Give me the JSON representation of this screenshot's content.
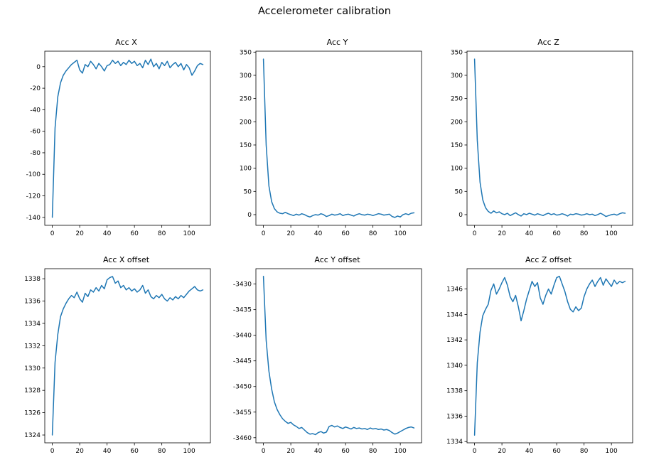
{
  "title": "Accelerometer calibration",
  "line_color": "#1f77b4",
  "text_color": "#000000",
  "chart_data": [
    {
      "type": "line",
      "title": "Acc X",
      "xlabel": "",
      "ylabel": "",
      "x_ticks": [
        0,
        20,
        40,
        60,
        80,
        100
      ],
      "y_ticks": [
        -140,
        -120,
        -100,
        -80,
        -60,
        -40,
        -20,
        0
      ],
      "xlim": [
        -5.5,
        115.5
      ],
      "ylim": [
        -147.4,
        14.4
      ],
      "grid": false,
      "legend": "none",
      "x": {
        "start": 0,
        "step": 2,
        "count": 56
      },
      "values": [
        -140,
        -57,
        -28,
        -15,
        -8,
        -4,
        -1,
        2,
        4,
        6,
        -3,
        -6,
        2,
        0,
        5,
        2,
        -2,
        3,
        0,
        -4,
        1,
        2,
        6,
        3,
        5,
        1,
        4,
        2,
        6,
        3,
        5,
        1,
        3,
        -1,
        6,
        2,
        7,
        0,
        3,
        -2,
        4,
        1,
        5,
        -1,
        2,
        4,
        0,
        3,
        -3,
        2,
        -1,
        -8,
        -4,
        1,
        3,
        2
      ]
    },
    {
      "type": "line",
      "title": "Acc Y",
      "xlabel": "",
      "ylabel": "",
      "x_ticks": [
        0,
        20,
        40,
        60,
        80,
        100
      ],
      "y_ticks": [
        0,
        50,
        100,
        150,
        200,
        250,
        300,
        350
      ],
      "xlim": [
        -5.5,
        115.5
      ],
      "ylim": [
        -23,
        352
      ],
      "grid": false,
      "legend": "none",
      "x": {
        "start": 0,
        "step": 2,
        "count": 56
      },
      "values": [
        335,
        150,
        62,
        28,
        13,
        6,
        3,
        2,
        5,
        2,
        0,
        -2,
        1,
        -1,
        2,
        0,
        -3,
        -5,
        -2,
        0,
        -1,
        2,
        0,
        -4,
        -2,
        1,
        -1,
        0,
        2,
        -2,
        0,
        1,
        -1,
        -3,
        0,
        2,
        0,
        -1,
        1,
        0,
        -2,
        0,
        2,
        1,
        -1,
        0,
        1,
        -4,
        -6,
        -3,
        -5,
        0,
        2,
        0,
        3,
        4
      ]
    },
    {
      "type": "line",
      "title": "Acc Z",
      "xlabel": "",
      "ylabel": "",
      "x_ticks": [
        0,
        20,
        40,
        60,
        80,
        100
      ],
      "y_ticks": [
        0,
        50,
        100,
        150,
        200,
        250,
        300,
        350
      ],
      "xlim": [
        -5.5,
        115.5
      ],
      "ylim": [
        -23,
        352
      ],
      "grid": false,
      "legend": "none",
      "x": {
        "start": 0,
        "step": 2,
        "count": 56
      },
      "values": [
        335,
        160,
        70,
        32,
        15,
        7,
        3,
        8,
        4,
        6,
        2,
        0,
        3,
        -2,
        1,
        4,
        0,
        -3,
        2,
        0,
        3,
        1,
        -1,
        2,
        0,
        -2,
        1,
        3,
        0,
        2,
        -1,
        0,
        2,
        0,
        -3,
        1,
        0,
        2,
        1,
        -1,
        0,
        2,
        0,
        1,
        -2,
        0,
        3,
        0,
        -4,
        -2,
        0,
        1,
        -1,
        2,
        4,
        3
      ]
    },
    {
      "type": "line",
      "title": "Acc X offset",
      "xlabel": "",
      "ylabel": "",
      "x_ticks": [
        0,
        20,
        40,
        60,
        80,
        100
      ],
      "y_ticks": [
        1324,
        1326,
        1328,
        1330,
        1332,
        1334,
        1336,
        1338
      ],
      "xlim": [
        -5.5,
        115.5
      ],
      "ylim": [
        1323.3,
        1338.9
      ],
      "grid": false,
      "legend": "none",
      "x": {
        "start": 0,
        "step": 2,
        "count": 56
      },
      "values": [
        1324.0,
        1330.5,
        1333.0,
        1334.6,
        1335.3,
        1335.8,
        1336.2,
        1336.5,
        1336.3,
        1336.8,
        1336.2,
        1335.9,
        1336.7,
        1336.4,
        1337.0,
        1336.8,
        1337.2,
        1336.9,
        1337.4,
        1337.1,
        1337.9,
        1338.1,
        1338.2,
        1337.6,
        1337.8,
        1337.2,
        1337.4,
        1337.0,
        1337.2,
        1336.9,
        1337.1,
        1336.8,
        1337.0,
        1337.4,
        1336.7,
        1337.0,
        1336.4,
        1336.2,
        1336.5,
        1336.3,
        1336.6,
        1336.2,
        1336.0,
        1336.3,
        1336.1,
        1336.4,
        1336.2,
        1336.5,
        1336.3,
        1336.6,
        1336.9,
        1337.1,
        1337.3,
        1337.0,
        1336.9,
        1337.0
      ]
    },
    {
      "type": "line",
      "title": "Acc Y offset",
      "xlabel": "",
      "ylabel": "",
      "x_ticks": [
        0,
        20,
        40,
        60,
        80,
        100
      ],
      "y_ticks": [
        -3460,
        -3455,
        -3450,
        -3445,
        -3440,
        -3435,
        -3430
      ],
      "xlim": [
        -5.5,
        115.5
      ],
      "ylim": [
        -3461.0,
        -3427.0
      ],
      "grid": false,
      "legend": "none",
      "x": {
        "start": 0,
        "step": 2,
        "count": 56
      },
      "values": [
        -3428.5,
        -3441.0,
        -3447.0,
        -3450.5,
        -3453.0,
        -3454.5,
        -3455.5,
        -3456.3,
        -3456.8,
        -3457.2,
        -3457.0,
        -3457.5,
        -3457.8,
        -3458.2,
        -3458.0,
        -3458.5,
        -3459.0,
        -3459.3,
        -3459.2,
        -3459.4,
        -3459.0,
        -3458.8,
        -3459.1,
        -3458.9,
        -3457.8,
        -3457.6,
        -3457.9,
        -3457.7,
        -3458.0,
        -3458.2,
        -3457.9,
        -3458.1,
        -3458.3,
        -3458.0,
        -3458.2,
        -3458.1,
        -3458.3,
        -3458.2,
        -3458.4,
        -3458.1,
        -3458.3,
        -3458.2,
        -3458.4,
        -3458.3,
        -3458.5,
        -3458.4,
        -3458.6,
        -3459.0,
        -3459.3,
        -3459.1,
        -3458.8,
        -3458.5,
        -3458.2,
        -3458.0,
        -3457.9,
        -3458.1
      ]
    },
    {
      "type": "line",
      "title": "Acc Z offset",
      "xlabel": "",
      "ylabel": "",
      "x_ticks": [
        0,
        20,
        40,
        60,
        80,
        100
      ],
      "y_ticks": [
        1334,
        1336,
        1338,
        1340,
        1342,
        1344,
        1346
      ],
      "xlim": [
        -5.5,
        115.5
      ],
      "ylim": [
        1333.9,
        1347.6
      ],
      "grid": false,
      "legend": "none",
      "x": {
        "start": 0,
        "step": 2,
        "count": 56
      },
      "values": [
        1334.5,
        1340.2,
        1342.6,
        1343.9,
        1344.4,
        1344.8,
        1345.9,
        1346.4,
        1345.6,
        1346.0,
        1346.5,
        1346.9,
        1346.3,
        1345.4,
        1345.0,
        1345.5,
        1344.6,
        1343.5,
        1344.3,
        1345.2,
        1345.9,
        1346.6,
        1346.2,
        1346.5,
        1345.3,
        1344.8,
        1345.5,
        1346.0,
        1345.6,
        1346.3,
        1346.9,
        1347.0,
        1346.4,
        1345.8,
        1345.0,
        1344.4,
        1344.2,
        1344.6,
        1344.3,
        1344.5,
        1345.4,
        1346.0,
        1346.4,
        1346.7,
        1346.2,
        1346.6,
        1346.9,
        1346.3,
        1346.8,
        1346.5,
        1346.2,
        1346.7,
        1346.4,
        1346.6,
        1346.5,
        1346.6
      ]
    }
  ]
}
